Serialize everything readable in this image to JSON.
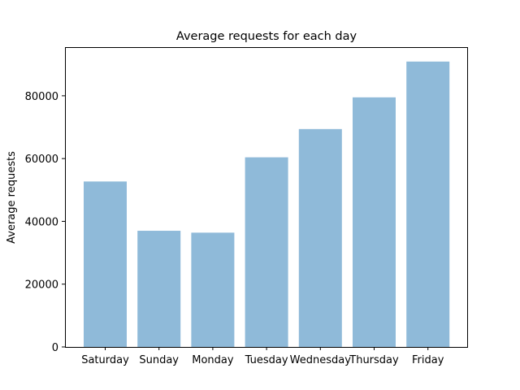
{
  "chart_data": {
    "type": "bar",
    "title": "Average requests for each day",
    "xlabel": "",
    "ylabel": "Average requests",
    "categories": [
      "Saturday",
      "Sunday",
      "Monday",
      "Tuesday",
      "Wednesday",
      "Thursday",
      "Friday"
    ],
    "values": [
      52700,
      37000,
      36400,
      60400,
      69400,
      79500,
      90900
    ],
    "ylim": [
      0,
      95500
    ],
    "yticks": [
      0,
      20000,
      40000,
      60000,
      80000
    ],
    "ytick_labels": [
      "0",
      "20000",
      "40000",
      "60000",
      "80000"
    ],
    "grid": false,
    "legend": "none",
    "bar_color": "#8fbad9"
  }
}
